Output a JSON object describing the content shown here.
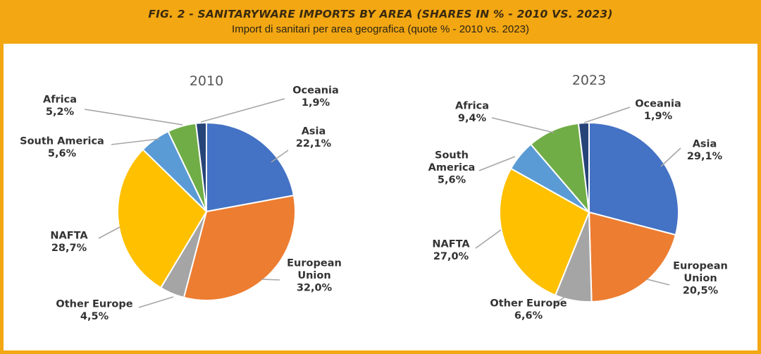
{
  "header": {
    "title": "FIG. 2 - SANITARYWARE IMPORTS BY AREA (SHARES IN % - 2010 VS. 2023)",
    "subtitle": "Import di sanitari per area geografica (quote % - 2010 vs. 2023)"
  },
  "colors": {
    "frame": "#f3a712",
    "Asia": "#4472c4",
    "European Union": "#ed7d31",
    "Other Europe": "#a5a5a5",
    "NAFTA": "#ffc000",
    "South America": "#5b9bd5",
    "Africa": "#70ad47",
    "Oceania": "#264478"
  },
  "chart_data": [
    {
      "type": "pie",
      "title": "2010",
      "categories": [
        "Asia",
        "European Union",
        "Other Europe",
        "NAFTA",
        "South America",
        "Africa",
        "Oceania"
      ],
      "values": [
        22.1,
        32.0,
        4.5,
        28.7,
        5.6,
        5.2,
        1.9
      ],
      "labels": [
        {
          "lines": [
            "Asia",
            "22,1%"
          ]
        },
        {
          "lines": [
            "European",
            "Union",
            "32,0%"
          ]
        },
        {
          "lines": [
            "Other Europe",
            "4,5%"
          ]
        },
        {
          "lines": [
            "NAFTA",
            "28,7%"
          ]
        },
        {
          "lines": [
            "South America",
            "5,6%"
          ]
        },
        {
          "lines": [
            "Africa",
            "5,2%"
          ]
        },
        {
          "lines": [
            "Oceania",
            "1,9%"
          ]
        }
      ]
    },
    {
      "type": "pie",
      "title": "2023",
      "categories": [
        "Asia",
        "European Union",
        "Other Europe",
        "NAFTA",
        "South America",
        "Africa",
        "Oceania"
      ],
      "values": [
        29.1,
        20.5,
        6.6,
        27.0,
        5.6,
        9.4,
        1.9
      ],
      "labels": [
        {
          "lines": [
            "Asia",
            "29,1%"
          ]
        },
        {
          "lines": [
            "European",
            "Union",
            "20,5%"
          ]
        },
        {
          "lines": [
            "Other Europe",
            "6,6%"
          ]
        },
        {
          "lines": [
            "NAFTA",
            "27,0%"
          ]
        },
        {
          "lines": [
            "South",
            "America",
            "5,6%"
          ]
        },
        {
          "lines": [
            "Africa",
            "9,4%"
          ]
        },
        {
          "lines": [
            "Oceania",
            "1,9%"
          ]
        }
      ]
    }
  ]
}
